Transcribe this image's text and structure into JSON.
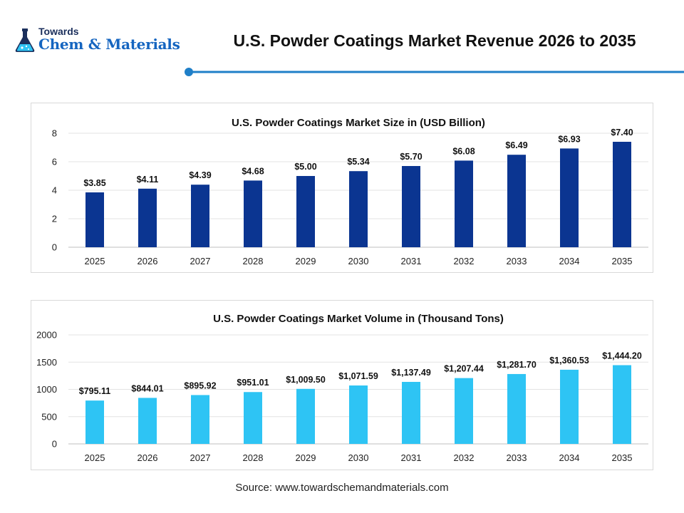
{
  "logo": {
    "line1": "Towards",
    "line2": "Chem & Materials"
  },
  "header": {
    "title": "U.S. Powder Coatings Market Revenue 2026 to 2035"
  },
  "colors": {
    "accent": "#1f7fc8",
    "brand": "#1565c0",
    "bar_dark": "#0b3591",
    "bar_light": "#2ec4f4"
  },
  "chart_data": [
    {
      "type": "bar",
      "title": "U.S. Powder Coatings Market Size in (USD Billion)",
      "categories": [
        "2025",
        "2026",
        "2027",
        "2028",
        "2029",
        "2030",
        "2031",
        "2032",
        "2033",
        "2034",
        "2035"
      ],
      "values": [
        3.85,
        4.11,
        4.39,
        4.68,
        5.0,
        5.34,
        5.7,
        6.08,
        6.49,
        6.93,
        7.4
      ],
      "data_labels": [
        "$3.85",
        "$4.11",
        "$4.39",
        "$4.68",
        "$5.00",
        "$5.34",
        "$5.70",
        "$6.08",
        "$6.49",
        "$6.93",
        "$7.40"
      ],
      "ylim": [
        0,
        8
      ],
      "yticks": [
        0,
        2,
        4,
        6,
        8
      ],
      "xlabel": "",
      "ylabel": "",
      "grid": true,
      "color": "#0b3591"
    },
    {
      "type": "bar",
      "title": "U.S. Powder Coatings Market Volume in (Thousand Tons)",
      "categories": [
        "2025",
        "2026",
        "2027",
        "2028",
        "2029",
        "2030",
        "2031",
        "2032",
        "2033",
        "2034",
        "2035"
      ],
      "values": [
        795.11,
        844.01,
        895.92,
        951.01,
        1009.5,
        1071.59,
        1137.49,
        1207.44,
        1281.7,
        1360.53,
        1444.2
      ],
      "data_labels": [
        "$795.11",
        "$844.01",
        "$895.92",
        "$951.01",
        "$1,009.50",
        "$1,071.59",
        "$1,137.49",
        "$1,207.44",
        "$1,281.70",
        "$1,360.53",
        "$1,444.20"
      ],
      "ylim": [
        0,
        2000
      ],
      "yticks": [
        0,
        500,
        1000,
        1500,
        2000
      ],
      "xlabel": "",
      "ylabel": "",
      "grid": true,
      "color": "#2ec4f4"
    }
  ],
  "footer": {
    "source": "Source: www.towardschemandmaterials.com"
  }
}
